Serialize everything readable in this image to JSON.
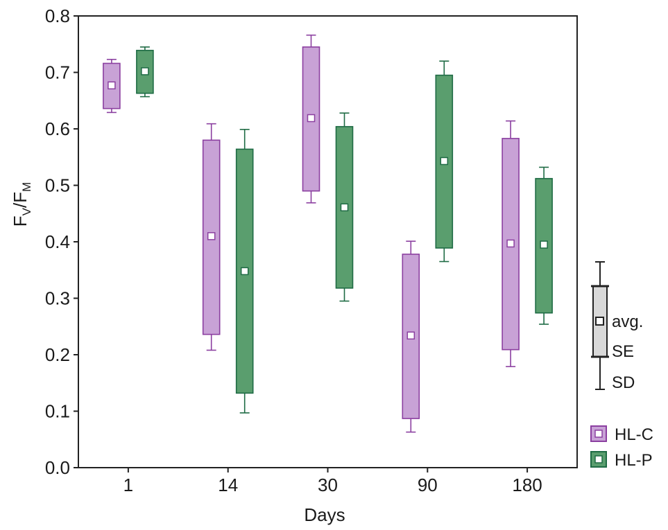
{
  "chart_data": {
    "type": "box",
    "xlabel": "Days",
    "ylabel": {
      "base": "F",
      "sub_v": "V",
      "sep": "/F",
      "sub_m": "M"
    },
    "ylim": [
      0.0,
      0.8
    ],
    "y_ticks": [
      "0.0",
      "0.1",
      "0.2",
      "0.3",
      "0.4",
      "0.5",
      "0.6",
      "0.7",
      "0.8"
    ],
    "categories": [
      "1",
      "14",
      "30",
      "90",
      "180"
    ],
    "series": [
      {
        "name": "HL-C",
        "color": "#c8a2d6",
        "stroke": "#8b3fa0",
        "boxes": [
          {
            "avg": 0.677,
            "se_low": 0.636,
            "se_high": 0.716,
            "sd_low": 0.629,
            "sd_high": 0.723
          },
          {
            "avg": 0.41,
            "se_low": 0.236,
            "se_high": 0.58,
            "sd_low": 0.208,
            "sd_high": 0.609
          },
          {
            "avg": 0.619,
            "se_low": 0.49,
            "se_high": 0.745,
            "sd_low": 0.469,
            "sd_high": 0.766
          },
          {
            "avg": 0.234,
            "se_low": 0.087,
            "se_high": 0.378,
            "sd_low": 0.063,
            "sd_high": 0.401
          },
          {
            "avg": 0.397,
            "se_low": 0.209,
            "se_high": 0.583,
            "sd_low": 0.179,
            "sd_high": 0.614
          }
        ]
      },
      {
        "name": "HL-P",
        "color": "#5a9e6e",
        "stroke": "#1e6b44",
        "boxes": [
          {
            "avg": 0.702,
            "se_low": 0.663,
            "se_high": 0.739,
            "sd_low": 0.657,
            "sd_high": 0.745
          },
          {
            "avg": 0.348,
            "se_low": 0.132,
            "se_high": 0.564,
            "sd_low": 0.097,
            "sd_high": 0.599
          },
          {
            "avg": 0.461,
            "se_low": 0.318,
            "se_high": 0.604,
            "sd_low": 0.295,
            "sd_high": 0.628
          },
          {
            "avg": 0.543,
            "se_low": 0.389,
            "se_high": 0.695,
            "sd_low": 0.365,
            "sd_high": 0.72
          },
          {
            "avg": 0.395,
            "se_low": 0.274,
            "se_high": 0.512,
            "sd_low": 0.254,
            "sd_high": 0.532
          }
        ]
      }
    ],
    "key": {
      "avg": "avg.",
      "se": "SE",
      "sd": "SD"
    },
    "legend_placement": "right",
    "grid": false
  }
}
